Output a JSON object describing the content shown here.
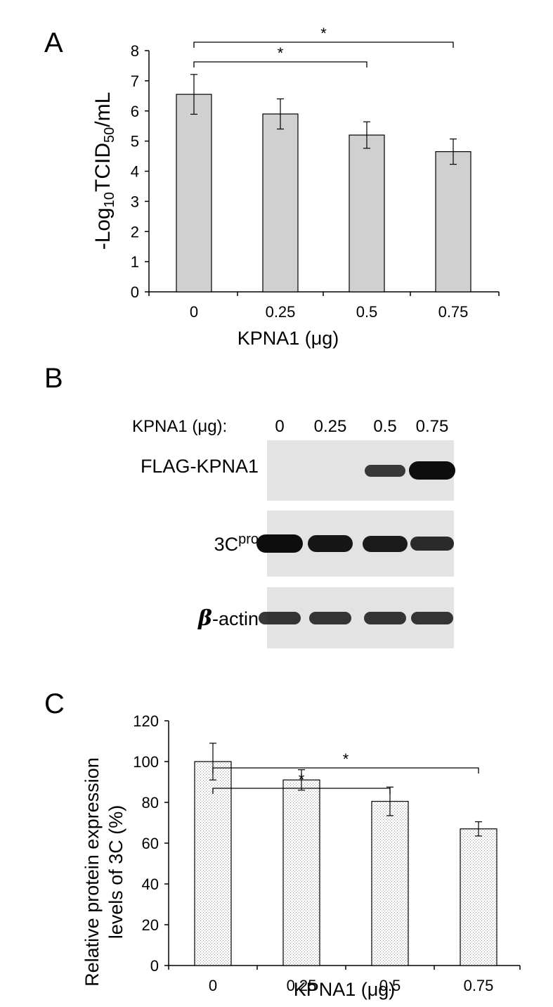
{
  "chart_data": [
    {
      "type": "bar",
      "panel": "A",
      "categories": [
        "0",
        "0.25",
        "0.5",
        "0.75"
      ],
      "values": [
        6.55,
        5.9,
        5.2,
        4.65
      ],
      "errors": [
        0.66,
        0.5,
        0.44,
        0.42
      ],
      "xlabel": "KPNA1 (μg)",
      "ylabel_main": "-Log",
      "ylabel_sub1": "10",
      "ylabel_mid": "TCID",
      "ylabel_sub2": "50",
      "ylabel_end": "/mL",
      "ylim": [
        0,
        8
      ],
      "yticks": [
        "0",
        "1",
        "2",
        "3",
        "4",
        "5",
        "6",
        "7",
        "8"
      ],
      "bar_color": "#d0d0d0",
      "significance": [
        {
          "from": "0",
          "to": "0.5",
          "label": "*"
        },
        {
          "from": "0",
          "to": "0.75",
          "label": "*"
        }
      ]
    },
    {
      "type": "bar",
      "panel": "C",
      "categories": [
        "0",
        "0.25",
        "0.5",
        "0.75"
      ],
      "values": [
        100,
        91,
        80.5,
        67
      ],
      "errors": [
        9,
        5,
        7,
        3.5
      ],
      "xlabel": "KPNA1 (μg)",
      "ylabel_line1": "Relative protein expression",
      "ylabel_line2": "levels of 3C (%)",
      "ylim": [
        0,
        120
      ],
      "yticks": [
        "0",
        "20",
        "40",
        "60",
        "80",
        "100",
        "120"
      ],
      "bar_pattern": "dotted",
      "significance": [
        {
          "from": "0",
          "to": "0.5",
          "label": "*"
        },
        {
          "from": "0",
          "to": "0.75",
          "label": "*"
        }
      ]
    }
  ],
  "panelA": {
    "letter": "A"
  },
  "panelB": {
    "letter": "B",
    "header_label": "KPNA1 (μg):",
    "lanes": [
      "0",
      "0.25",
      "0.5",
      "0.75"
    ],
    "blots": [
      {
        "label": "FLAG-KPNA1",
        "intensity": [
          0,
          0,
          0.55,
          1.0
        ]
      },
      {
        "label_main": "3C",
        "label_sup": "pro",
        "intensity": [
          1.0,
          0.9,
          0.85,
          0.7
        ]
      },
      {
        "label_greek": "β",
        "label_rest": "-actin",
        "intensity": [
          0.6,
          0.6,
          0.6,
          0.6
        ]
      }
    ],
    "blot_background": "#e3e3e3",
    "band_color": "#0d0d0d"
  },
  "panelC": {
    "letter": "C"
  }
}
